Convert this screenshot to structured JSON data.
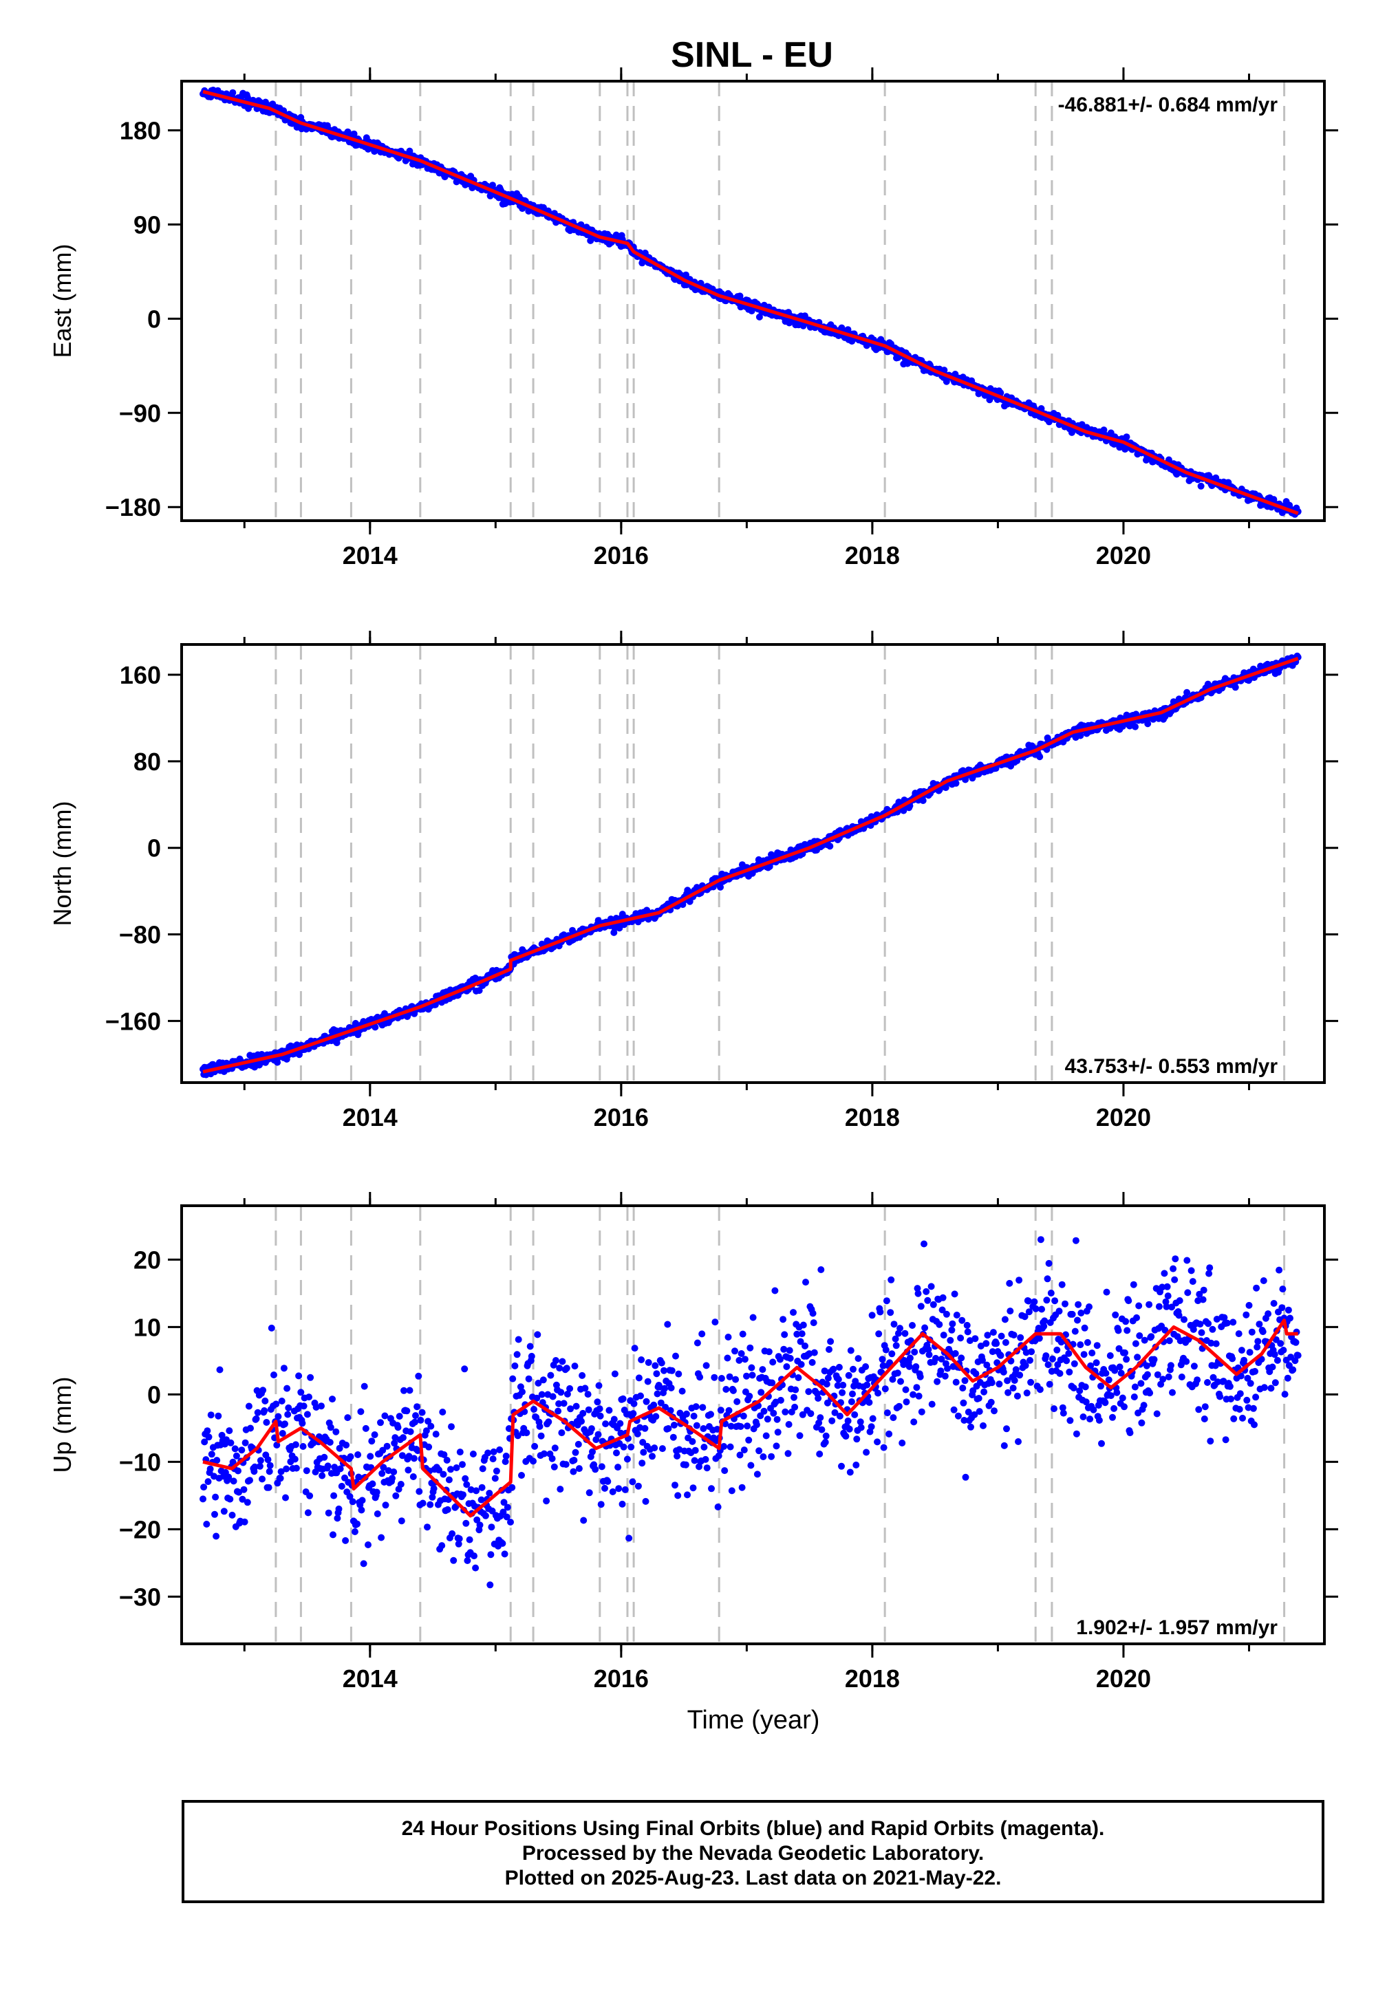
{
  "title": "SINL - EU",
  "colors": {
    "points": "#0000ff",
    "model": "#ff0000",
    "breaks": "#c0c0c0",
    "axes": "#000000"
  },
  "x_axis": {
    "label": "Time (year)",
    "range": [
      2012.5,
      2021.6
    ],
    "ticks": [
      "2014",
      "2016",
      "2018",
      "2020"
    ]
  },
  "breaks": [
    2013.25,
    2013.45,
    2013.85,
    2014.4,
    2015.12,
    2015.3,
    2015.83,
    2016.05,
    2016.1,
    2016.78,
    2018.1,
    2019.3,
    2019.43,
    2021.28
  ],
  "chart_data": [
    {
      "type": "scatter",
      "name": "east",
      "ylabel": "East (mm)",
      "ylim": [
        -193,
        227
      ],
      "yticks": [
        "180",
        "90",
        "0",
        "−90",
        "−180"
      ],
      "rate_label": "-46.881+/- 0.684 mm/yr",
      "rate_position": "top-right",
      "series": [
        {
          "name": "model",
          "points": [
            [
              2012.67,
              217
            ],
            [
              2013.2,
              201
            ],
            [
              2013.45,
              187
            ],
            [
              2013.85,
              172
            ],
            [
              2014.4,
              151
            ],
            [
              2015.12,
              115
            ],
            [
              2015.83,
              78
            ],
            [
              2016.05,
              72
            ],
            [
              2016.1,
              64
            ],
            [
              2016.5,
              37
            ],
            [
              2016.78,
              22
            ],
            [
              2017.5,
              -4
            ],
            [
              2018.1,
              -26
            ],
            [
              2018.5,
              -50
            ],
            [
              2019.3,
              -88
            ],
            [
              2019.7,
              -108
            ],
            [
              2020.0,
              -118
            ],
            [
              2020.5,
              -147
            ],
            [
              2021.39,
              -186
            ]
          ]
        }
      ]
    },
    {
      "type": "scatter",
      "name": "north",
      "ylabel": "North (mm)",
      "ylim": [
        -217,
        188
      ],
      "yticks": [
        "160",
        "80",
        "0",
        "−80",
        "−160"
      ],
      "rate_label": "43.753+/- 0.553 mm/yr",
      "rate_position": "bottom-right",
      "series": [
        {
          "name": "model",
          "points": [
            [
              2012.67,
              -207
            ],
            [
              2013.3,
              -191
            ],
            [
              2013.85,
              -169
            ],
            [
              2014.4,
              -147
            ],
            [
              2014.8,
              -128
            ],
            [
              2015.12,
              -112
            ],
            [
              2015.12,
              -104
            ],
            [
              2015.83,
              -72
            ],
            [
              2016.3,
              -60
            ],
            [
              2016.78,
              -30
            ],
            [
              2017.5,
              0
            ],
            [
              2018.1,
              30
            ],
            [
              2018.6,
              62
            ],
            [
              2019.3,
              90
            ],
            [
              2019.6,
              107
            ],
            [
              2020.3,
              125
            ],
            [
              2020.7,
              147
            ],
            [
              2021.39,
              175
            ]
          ]
        }
      ]
    },
    {
      "type": "scatter",
      "name": "up",
      "ylabel": "Up (mm)",
      "xlabel": "Time (year)",
      "ylim": [
        -37,
        28
      ],
      "yticks": [
        "20",
        "10",
        "0",
        "−10",
        "−20",
        "−30"
      ],
      "rate_label": "1.902+/- 1.957 mm/yr",
      "rate_position": "bottom-right",
      "series": [
        {
          "name": "model",
          "points": [
            [
              2012.67,
              -10
            ],
            [
              2012.9,
              -11
            ],
            [
              2013.1,
              -8
            ],
            [
              2013.25,
              -4
            ],
            [
              2013.27,
              -7
            ],
            [
              2013.45,
              -5
            ],
            [
              2013.6,
              -7
            ],
            [
              2013.85,
              -11
            ],
            [
              2013.87,
              -14
            ],
            [
              2014.1,
              -10
            ],
            [
              2014.4,
              -6
            ],
            [
              2014.42,
              -11
            ],
            [
              2014.8,
              -18
            ],
            [
              2015.12,
              -13
            ],
            [
              2015.14,
              -3
            ],
            [
              2015.3,
              -1
            ],
            [
              2015.55,
              -4
            ],
            [
              2015.8,
              -8
            ],
            [
              2016.05,
              -6
            ],
            [
              2016.07,
              -4
            ],
            [
              2016.3,
              -2
            ],
            [
              2016.55,
              -5
            ],
            [
              2016.78,
              -8
            ],
            [
              2016.8,
              -4
            ],
            [
              2017.1,
              -1
            ],
            [
              2017.4,
              4
            ],
            [
              2017.6,
              1
            ],
            [
              2017.8,
              -3
            ],
            [
              2018.1,
              3
            ],
            [
              2018.4,
              9
            ],
            [
              2018.6,
              6
            ],
            [
              2018.8,
              2
            ],
            [
              2019.0,
              4
            ],
            [
              2019.3,
              9
            ],
            [
              2019.5,
              9
            ],
            [
              2019.7,
              4
            ],
            [
              2019.9,
              1
            ],
            [
              2020.1,
              4
            ],
            [
              2020.4,
              10
            ],
            [
              2020.6,
              8
            ],
            [
              2020.9,
              3
            ],
            [
              2021.1,
              6
            ],
            [
              2021.28,
              11
            ],
            [
              2021.3,
              9
            ],
            [
              2021.39,
              9
            ]
          ]
        }
      ]
    }
  ],
  "caption": [
    "24 Hour Positions Using Final Orbits (blue) and Rapid Orbits (magenta).",
    "Processed by the Nevada Geodetic Laboratory.",
    "Plotted on 2025-Aug-23. Last data on 2021-May-22."
  ]
}
